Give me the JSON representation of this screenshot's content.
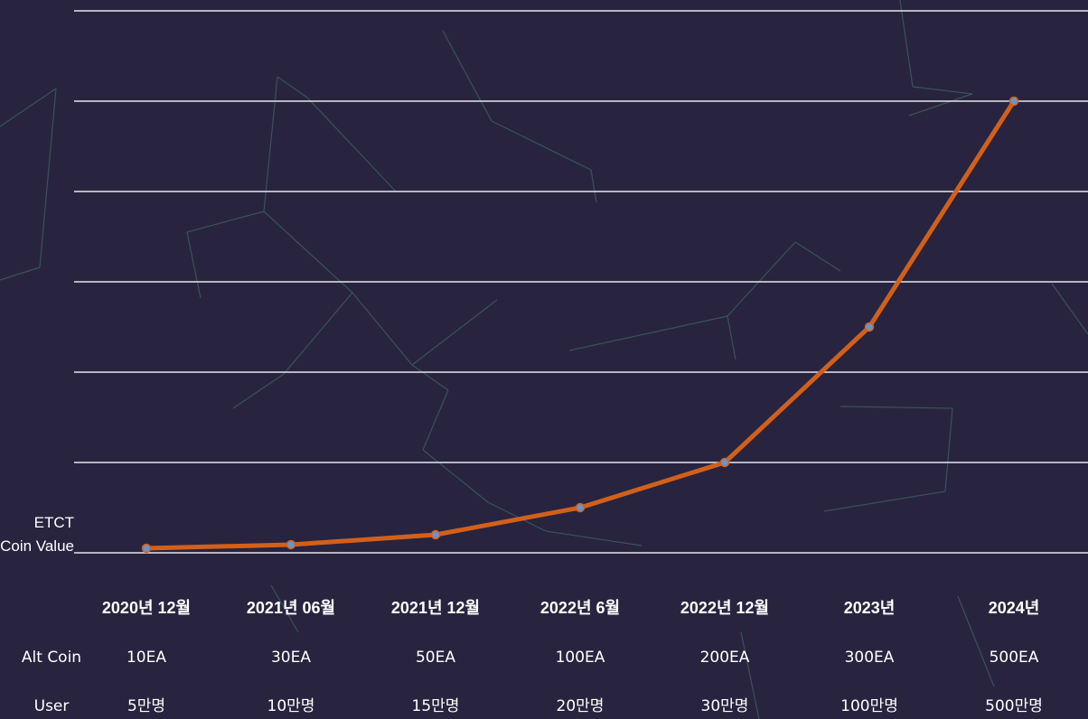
{
  "chart_data": {
    "type": "line",
    "y_label": "ETCT Coin Value",
    "categories": [
      "2020년 12월",
      "2021년 06월",
      "2021년 12월",
      "2022년 6월",
      "2022년 12월",
      "2023년",
      "2024년"
    ],
    "values": [
      0.05,
      0.09,
      0.2,
      0.5,
      1,
      2.5,
      5
    ],
    "color": "#d2601a",
    "marker_color": "#6f93c4",
    "ylim": [
      0,
      6
    ],
    "yticks": [
      0,
      1,
      2,
      3,
      4,
      5,
      6
    ],
    "grid": true,
    "rows": [
      {
        "label": "Alt Coin",
        "values": [
          "10EA",
          "30EA",
          "50EA",
          "100EA",
          "200EA",
          "300EA",
          "500EA"
        ]
      },
      {
        "label": "User",
        "values": [
          "5만명",
          "10만명",
          "15만명",
          "20만명",
          "30만명",
          "100만명",
          "500만명"
        ]
      }
    ]
  }
}
